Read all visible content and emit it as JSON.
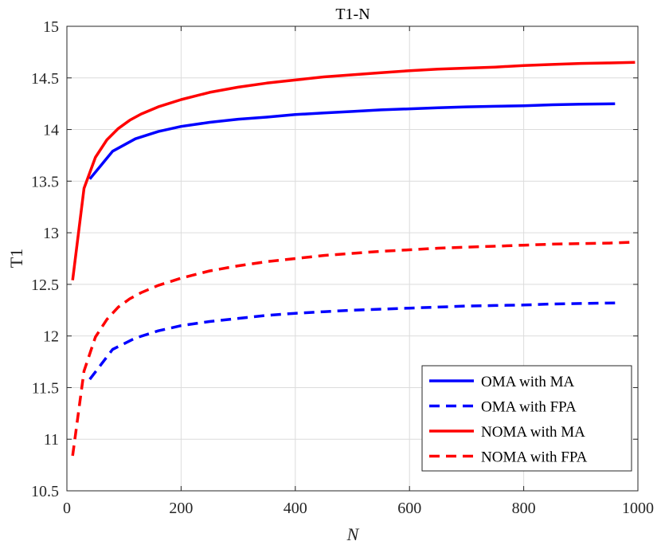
{
  "chart_data": {
    "type": "line",
    "title": "T1-N",
    "xlabel": "N",
    "ylabel": "T1",
    "xlim": [
      0,
      1000
    ],
    "ylim": [
      10.5,
      15
    ],
    "xticks": [
      "0",
      "200",
      "400",
      "600",
      "800",
      "1000"
    ],
    "yticks": [
      "10.5",
      "11",
      "11.5",
      "12",
      "12.5",
      "13",
      "13.5",
      "14",
      "14.5",
      "15"
    ],
    "grid": true,
    "legend_position": "bottom-right",
    "series": [
      {
        "name": "OMA with MA",
        "color": "#0000ff",
        "style": "solid",
        "x": [
          40,
          80,
          120,
          160,
          200,
          250,
          300,
          350,
          400,
          450,
          500,
          550,
          600,
          650,
          700,
          750,
          800,
          850,
          900,
          960
        ],
        "y": [
          13.52,
          13.79,
          13.91,
          13.98,
          14.03,
          14.07,
          14.1,
          14.12,
          14.145,
          14.16,
          14.175,
          14.19,
          14.2,
          14.21,
          14.22,
          14.225,
          14.23,
          14.24,
          14.245,
          14.25
        ]
      },
      {
        "name": "OMA with FPA",
        "color": "#0000ff",
        "style": "dashed",
        "x": [
          40,
          80,
          120,
          160,
          200,
          250,
          300,
          350,
          400,
          450,
          500,
          550,
          600,
          650,
          700,
          750,
          800,
          850,
          900,
          960
        ],
        "y": [
          11.58,
          11.87,
          11.98,
          12.05,
          12.1,
          12.14,
          12.17,
          12.2,
          12.22,
          12.235,
          12.25,
          12.26,
          12.27,
          12.28,
          12.29,
          12.295,
          12.3,
          12.31,
          12.315,
          12.32
        ]
      },
      {
        "name": "NOMA with MA",
        "color": "#ff0000",
        "style": "solid",
        "x": [
          10,
          30,
          50,
          70,
          90,
          110,
          130,
          160,
          200,
          250,
          300,
          350,
          400,
          450,
          500,
          550,
          600,
          650,
          700,
          750,
          800,
          850,
          900,
          950,
          995
        ],
        "y": [
          12.54,
          13.43,
          13.73,
          13.9,
          14.01,
          14.09,
          14.15,
          14.22,
          14.29,
          14.36,
          14.41,
          14.45,
          14.48,
          14.51,
          14.53,
          14.55,
          14.57,
          14.585,
          14.595,
          14.605,
          14.62,
          14.63,
          14.64,
          14.645,
          14.65
        ]
      },
      {
        "name": "NOMA with FPA",
        "color": "#ff0000",
        "style": "dashed",
        "x": [
          10,
          30,
          50,
          70,
          90,
          110,
          130,
          160,
          200,
          250,
          300,
          350,
          400,
          450,
          500,
          550,
          600,
          650,
          700,
          750,
          800,
          850,
          900,
          950,
          995
        ],
        "y": [
          10.84,
          11.66,
          11.99,
          12.16,
          12.28,
          12.36,
          12.42,
          12.49,
          12.56,
          12.63,
          12.68,
          12.72,
          12.75,
          12.78,
          12.8,
          12.82,
          12.835,
          12.85,
          12.86,
          12.87,
          12.88,
          12.89,
          12.895,
          12.9,
          12.91
        ]
      }
    ]
  }
}
